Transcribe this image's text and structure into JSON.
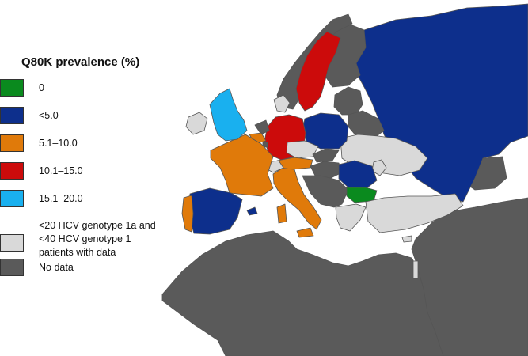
{
  "legend": {
    "title": "Q80K prevalence (%)",
    "items": [
      {
        "label": "0",
        "color": "#0a8a1e"
      },
      {
        "label": "<5.0",
        "color": "#0d2f8c"
      },
      {
        "label": "5.1–10.0",
        "color": "#e07a0a"
      },
      {
        "label": "10.1–15.0",
        "color": "#cc0b0b"
      },
      {
        "label": "15.1–20.0",
        "color": "#19b0ef"
      },
      {
        "label_lines": [
          "<20 HCV genotype 1a and",
          "<40 HCV genotype 1",
          "patients with data"
        ],
        "color": "#d9d9d9"
      },
      {
        "label": "No data",
        "color": "#5a5a5a"
      }
    ]
  },
  "map": {
    "background_color": "#ffffff",
    "regions": [
      {
        "name": "russia",
        "category": "<5.0"
      },
      {
        "name": "finland",
        "category": "No data"
      },
      {
        "name": "sweden",
        "category": "10.1–15.0"
      },
      {
        "name": "norway",
        "category": "No data"
      },
      {
        "name": "baltic-states",
        "category": "No data"
      },
      {
        "name": "poland",
        "category": "<5.0"
      },
      {
        "name": "belarus",
        "category": "No data"
      },
      {
        "name": "ukraine",
        "category": "<20 HCV genotype 1a and <40 HCV genotype 1 patients with data"
      },
      {
        "name": "moldova",
        "category": "<20 HCV genotype 1a and <40 HCV genotype 1 patients with data"
      },
      {
        "name": "germany",
        "category": "10.1–15.0"
      },
      {
        "name": "denmark",
        "category": "<20 HCV genotype 1a and <40 HCV genotype 1 patients with data"
      },
      {
        "name": "united-kingdom",
        "category": "15.1–20.0"
      },
      {
        "name": "ireland",
        "category": "<20 HCV genotype 1a and <40 HCV genotype 1 patients with data"
      },
      {
        "name": "netherlands",
        "category": "No data"
      },
      {
        "name": "belgium",
        "category": "5.1–10.0"
      },
      {
        "name": "luxembourg",
        "category": "No data"
      },
      {
        "name": "france",
        "category": "5.1–10.0"
      },
      {
        "name": "switzerland",
        "category": "<20 HCV genotype 1a and <40 HCV genotype 1 patients with data"
      },
      {
        "name": "austria",
        "category": "5.1–10.0"
      },
      {
        "name": "czech-republic",
        "category": "<20 HCV genotype 1a and <40 HCV genotype 1 patients with data"
      },
      {
        "name": "slovakia",
        "category": "No data"
      },
      {
        "name": "hungary",
        "category": "No data"
      },
      {
        "name": "italy",
        "category": "5.1–10.0"
      },
      {
        "name": "sardinia",
        "category": "5.1–10.0"
      },
      {
        "name": "sicily",
        "category": "5.1–10.0"
      },
      {
        "name": "spain",
        "category": "<5.0"
      },
      {
        "name": "portugal",
        "category": "5.1–10.0"
      },
      {
        "name": "balearic-islands",
        "category": "<5.0"
      },
      {
        "name": "balkans",
        "category": "No data"
      },
      {
        "name": "romania",
        "category": "<5.0"
      },
      {
        "name": "bulgaria",
        "category": "0"
      },
      {
        "name": "greece",
        "category": "<20 HCV genotype 1a and <40 HCV genotype 1 patients with data"
      },
      {
        "name": "turkey",
        "category": "<20 HCV genotype 1a and <40 HCV genotype 1 patients with data"
      },
      {
        "name": "cyprus",
        "category": "<20 HCV genotype 1a and <40 HCV genotype 1 patients with data"
      },
      {
        "name": "caucasus",
        "category": "No data"
      },
      {
        "name": "middle-east",
        "category": "No data"
      },
      {
        "name": "israel",
        "category": "<20 HCV genotype 1a and <40 HCV genotype 1 patients with data"
      },
      {
        "name": "north-africa",
        "category": "No data"
      }
    ]
  }
}
